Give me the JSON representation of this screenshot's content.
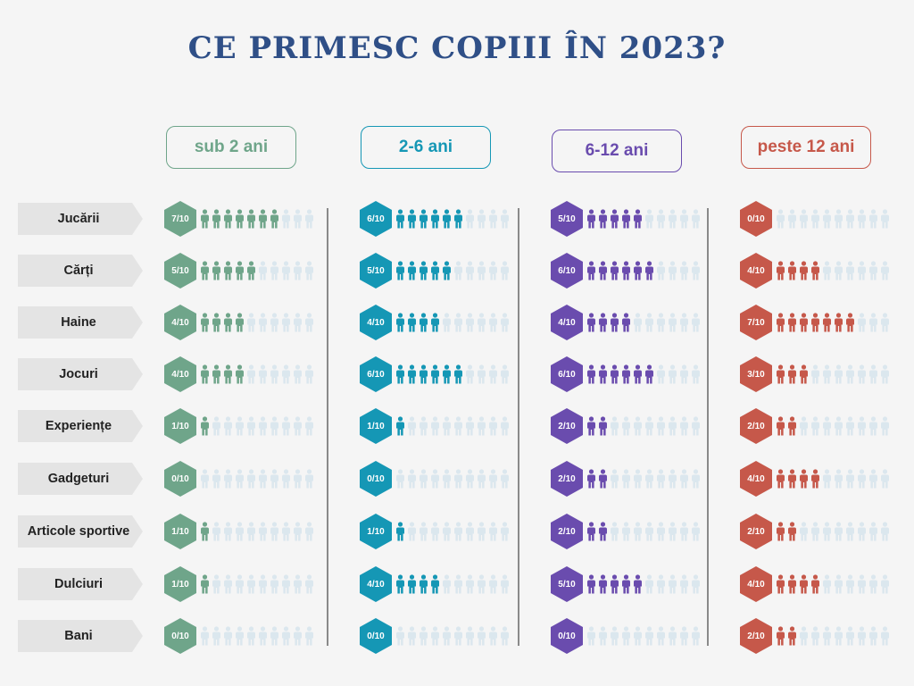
{
  "title": "CE PRIMESC COPIII ÎN 2023?",
  "chart_data": {
    "type": "pictogram",
    "total_per_row": 10,
    "categories": [
      "Jucării",
      "Cărți",
      "Haine",
      "Jocuri",
      "Experiențe",
      "Gadgeturi",
      "Articole sportive",
      "Dulciuri",
      "Bani"
    ],
    "series": [
      {
        "name": "sub 2 ani",
        "color": "#6fa58a",
        "values": [
          7,
          5,
          4,
          4,
          1,
          0,
          1,
          1,
          0
        ],
        "labels": [
          "7/10",
          "5/10",
          "4/10",
          "4/10",
          "1/10",
          "0/10",
          "1/10",
          "1/10",
          "0/10"
        ]
      },
      {
        "name": "2-6 ani",
        "color": "#1597b5",
        "values": [
          6,
          5,
          4,
          6,
          1,
          0,
          1,
          4,
          0
        ],
        "labels": [
          "6/10",
          "5/10",
          "4/10",
          "6/10",
          "1/10",
          "0/10",
          "1/10",
          "4/10",
          "0/10"
        ]
      },
      {
        "name": "6-12 ani",
        "color": "#6a4cae",
        "values": [
          5,
          6,
          4,
          6,
          2,
          2,
          2,
          5,
          0
        ],
        "labels": [
          "5/10",
          "6/10",
          "4/10",
          "6/10",
          "2/10",
          "2/10",
          "2/10",
          "5/10",
          "0/10"
        ]
      },
      {
        "name": "peste 12 ani",
        "color": "#c6584a",
        "values": [
          0,
          4,
          7,
          3,
          2,
          4,
          2,
          4,
          2
        ],
        "labels": [
          "0/10",
          "4/10",
          "7/10",
          "3/10",
          "2/10",
          "4/10",
          "2/10",
          "4/10",
          "2/10"
        ]
      }
    ],
    "inactive_color": "#dbe7ee"
  }
}
